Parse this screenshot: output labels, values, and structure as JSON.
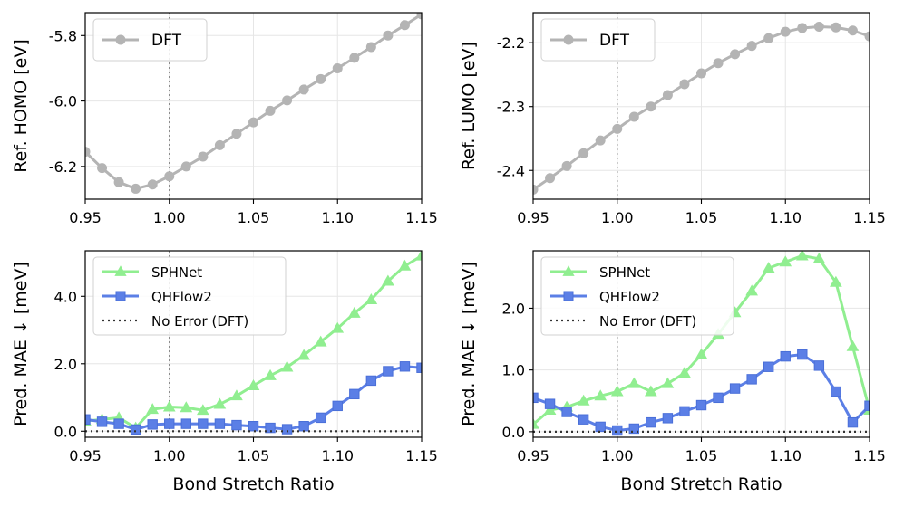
{
  "figure": {
    "x_label": "Bond Stretch Ratio"
  },
  "chart_data": [
    {
      "type": "line",
      "panel": "top-left",
      "ylabel": "Ref. HOMO [eV]",
      "xlim": [
        0.95,
        1.15
      ],
      "ylim": [
        -6.3,
        -5.73
      ],
      "xticks": [
        0.95,
        1.0,
        1.05,
        1.1,
        1.15
      ],
      "xtick_labels": [
        "0.95",
        "1.00",
        "1.05",
        "1.10",
        "1.15"
      ],
      "yticks": [
        -6.2,
        -6.0,
        -5.8
      ],
      "ytick_labels": [
        "-6.2",
        "-6.0",
        "-5.8"
      ],
      "vline": 1.0,
      "grid": true,
      "legend_position": "top-left",
      "series": [
        {
          "name": "DFT",
          "color": "#b4b4b4",
          "marker": "circle",
          "x": [
            0.95,
            0.96,
            0.97,
            0.98,
            0.99,
            1.0,
            1.01,
            1.02,
            1.03,
            1.04,
            1.05,
            1.06,
            1.07,
            1.08,
            1.09,
            1.1,
            1.11,
            1.12,
            1.13,
            1.14,
            1.15
          ],
          "y": [
            -6.155,
            -6.205,
            -6.248,
            -6.268,
            -6.255,
            -6.23,
            -6.2,
            -6.17,
            -6.135,
            -6.1,
            -6.065,
            -6.03,
            -5.998,
            -5.965,
            -5.933,
            -5.9,
            -5.868,
            -5.835,
            -5.8,
            -5.768,
            -5.735
          ]
        }
      ]
    },
    {
      "type": "line",
      "panel": "top-right",
      "ylabel": "Ref. LUMO [eV]",
      "xlim": [
        0.95,
        1.15
      ],
      "ylim": [
        -2.445,
        -2.153
      ],
      "xticks": [
        0.95,
        1.0,
        1.05,
        1.1,
        1.15
      ],
      "xtick_labels": [
        "0.95",
        "1.00",
        "1.05",
        "1.10",
        "1.15"
      ],
      "yticks": [
        -2.4,
        -2.3,
        -2.2
      ],
      "ytick_labels": [
        "-2.4",
        "-2.3",
        "-2.2"
      ],
      "vline": 1.0,
      "grid": true,
      "legend_position": "top-left",
      "series": [
        {
          "name": "DFT",
          "color": "#b4b4b4",
          "marker": "circle",
          "x": [
            0.95,
            0.96,
            0.97,
            0.98,
            0.99,
            1.0,
            1.01,
            1.02,
            1.03,
            1.04,
            1.05,
            1.06,
            1.07,
            1.08,
            1.09,
            1.1,
            1.11,
            1.12,
            1.13,
            1.14,
            1.15
          ],
          "y": [
            -2.43,
            -2.412,
            -2.393,
            -2.373,
            -2.353,
            -2.335,
            -2.316,
            -2.3,
            -2.282,
            -2.265,
            -2.248,
            -2.232,
            -2.218,
            -2.205,
            -2.193,
            -2.183,
            -2.177,
            -2.175,
            -2.176,
            -2.181,
            -2.19
          ]
        }
      ]
    },
    {
      "type": "line",
      "panel": "bottom-left",
      "ylabel": "Pred. MAE ↓ [meV]",
      "xlabel": "Bond Stretch Ratio",
      "xlim": [
        0.95,
        1.15
      ],
      "ylim": [
        -0.18,
        5.35
      ],
      "xticks": [
        0.95,
        1.0,
        1.05,
        1.1,
        1.15
      ],
      "xtick_labels": [
        "0.95",
        "1.00",
        "1.05",
        "1.10",
        "1.15"
      ],
      "yticks": [
        0.0,
        2.0,
        4.0
      ],
      "ytick_labels": [
        "0.0",
        "2.0",
        "4.0"
      ],
      "vline": 1.0,
      "grid": true,
      "legend_position": "top-left",
      "series": [
        {
          "name": "SPHNet",
          "color": "#90ee90",
          "marker": "triangle",
          "x": [
            0.95,
            0.96,
            0.97,
            0.98,
            0.99,
            1.0,
            1.01,
            1.02,
            1.03,
            1.04,
            1.05,
            1.06,
            1.07,
            1.08,
            1.09,
            1.1,
            1.11,
            1.12,
            1.13,
            1.14,
            1.15
          ],
          "y": [
            0.3,
            0.35,
            0.4,
            0.1,
            0.65,
            0.72,
            0.7,
            0.62,
            0.8,
            1.05,
            1.35,
            1.65,
            1.9,
            2.25,
            2.65,
            3.05,
            3.5,
            3.9,
            4.45,
            4.9,
            5.2
          ]
        },
        {
          "name": "QHFlow2",
          "color": "#5b7fe6",
          "marker": "square",
          "x": [
            0.95,
            0.96,
            0.97,
            0.98,
            0.99,
            1.0,
            1.01,
            1.02,
            1.03,
            1.04,
            1.05,
            1.06,
            1.07,
            1.08,
            1.09,
            1.1,
            1.11,
            1.12,
            1.13,
            1.14,
            1.15
          ],
          "y": [
            0.35,
            0.28,
            0.22,
            0.05,
            0.2,
            0.22,
            0.22,
            0.22,
            0.22,
            0.18,
            0.15,
            0.1,
            0.06,
            0.15,
            0.4,
            0.75,
            1.1,
            1.5,
            1.78,
            1.92,
            1.88
          ]
        },
        {
          "name": "No Error (DFT)",
          "color": "#333333",
          "linestyle": "dotted",
          "x": [
            0.95,
            1.15
          ],
          "y": [
            0.0,
            0.0
          ]
        }
      ]
    },
    {
      "type": "line",
      "panel": "bottom-right",
      "ylabel": "Pred. MAE ↓ [meV]",
      "xlabel": "Bond Stretch Ratio",
      "xlim": [
        0.95,
        1.15
      ],
      "ylim": [
        -0.09,
        2.93
      ],
      "xticks": [
        0.95,
        1.0,
        1.05,
        1.1,
        1.15
      ],
      "xtick_labels": [
        "0.95",
        "1.00",
        "1.05",
        "1.10",
        "1.15"
      ],
      "yticks": [
        0.0,
        1.0,
        2.0
      ],
      "ytick_labels": [
        "0.0",
        "1.0",
        "2.0"
      ],
      "vline": 1.0,
      "grid": true,
      "legend_position": "top-left",
      "series": [
        {
          "name": "SPHNet",
          "color": "#90ee90",
          "marker": "triangle",
          "x": [
            0.95,
            0.96,
            0.97,
            0.98,
            0.99,
            1.0,
            1.01,
            1.02,
            1.03,
            1.04,
            1.05,
            1.06,
            1.07,
            1.08,
            1.09,
            1.1,
            1.11,
            1.12,
            1.13,
            1.14,
            1.15
          ],
          "y": [
            0.12,
            0.35,
            0.4,
            0.5,
            0.58,
            0.65,
            0.78,
            0.65,
            0.78,
            0.95,
            1.25,
            1.58,
            1.93,
            2.28,
            2.65,
            2.75,
            2.85,
            2.8,
            2.42,
            1.38,
            0.35
          ]
        },
        {
          "name": "QHFlow2",
          "color": "#5b7fe6",
          "marker": "square",
          "x": [
            0.95,
            0.96,
            0.97,
            0.98,
            0.99,
            1.0,
            1.01,
            1.02,
            1.03,
            1.04,
            1.05,
            1.06,
            1.07,
            1.08,
            1.09,
            1.1,
            1.11,
            1.12,
            1.13,
            1.14,
            1.15
          ],
          "y": [
            0.55,
            0.45,
            0.32,
            0.2,
            0.08,
            0.02,
            0.05,
            0.15,
            0.22,
            0.33,
            0.43,
            0.55,
            0.7,
            0.85,
            1.05,
            1.22,
            1.25,
            1.07,
            0.65,
            0.15,
            0.42
          ]
        },
        {
          "name": "No Error (DFT)",
          "color": "#333333",
          "linestyle": "dotted",
          "x": [
            0.95,
            1.15
          ],
          "y": [
            0.0,
            0.0
          ]
        }
      ]
    }
  ]
}
